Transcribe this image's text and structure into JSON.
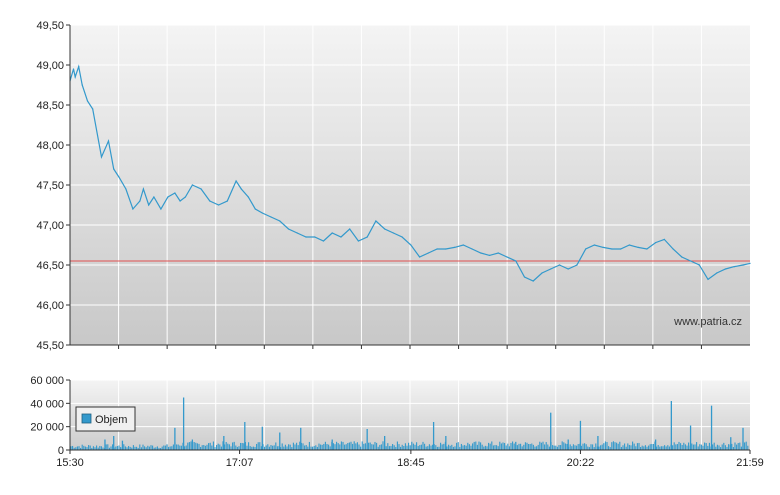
{
  "chart_data": [
    {
      "type": "line",
      "title": "",
      "xlabel": "",
      "ylabel": "",
      "ylim": [
        45.5,
        49.5
      ],
      "y_ticks": [
        "45,50",
        "46,00",
        "46,50",
        "47,00",
        "47,50",
        "48,00",
        "48,50",
        "49,00",
        "49,50"
      ],
      "reference_line": {
        "value": 46.55,
        "color": "#e05050"
      },
      "watermark": "www.patria.cz",
      "line_color": "#3399cc",
      "grid": true,
      "x_time_range": [
        "15:30",
        "21:59"
      ],
      "series": [
        {
          "x": [
            "15:30",
            "15:32",
            "15:33",
            "15:35",
            "15:37",
            "15:40",
            "15:43",
            "15:48",
            "15:52",
            "15:55",
            "15:58",
            "16:02",
            "16:06",
            "16:10",
            "16:12",
            "16:15",
            "16:18",
            "16:22",
            "16:26",
            "16:30",
            "16:33",
            "16:36",
            "16:40",
            "16:45",
            "16:50",
            "16:55",
            "17:00",
            "17:05",
            "17:08",
            "17:12",
            "17:16",
            "17:20",
            "17:25",
            "17:30",
            "17:35",
            "17:40",
            "17:45",
            "17:50",
            "17:55",
            "18:00",
            "18:05",
            "18:10",
            "18:15",
            "18:20",
            "18:25",
            "18:30",
            "18:35",
            "18:40",
            "18:45",
            "18:50",
            "18:55",
            "19:00",
            "19:05",
            "19:10",
            "19:15",
            "19:20",
            "19:25",
            "19:30",
            "19:35",
            "19:40",
            "19:45",
            "19:50",
            "19:55",
            "20:00",
            "20:05",
            "20:10",
            "20:15",
            "20:20",
            "20:25",
            "20:30",
            "20:35",
            "20:40",
            "20:45",
            "20:50",
            "20:55",
            "21:00",
            "21:05",
            "21:10",
            "21:15",
            "21:20",
            "21:25",
            "21:30",
            "21:35",
            "21:40",
            "21:45",
            "21:50",
            "21:55",
            "21:59"
          ],
          "values": [
            48.8,
            48.95,
            48.85,
            48.98,
            48.75,
            48.55,
            48.45,
            47.85,
            48.05,
            47.7,
            47.6,
            47.45,
            47.2,
            47.3,
            47.45,
            47.25,
            47.35,
            47.2,
            47.35,
            47.4,
            47.3,
            47.35,
            47.5,
            47.45,
            47.3,
            47.25,
            47.3,
            47.55,
            47.45,
            47.35,
            47.2,
            47.15,
            47.1,
            47.05,
            46.95,
            46.9,
            46.85,
            46.85,
            46.8,
            46.9,
            46.85,
            46.95,
            46.8,
            46.85,
            47.05,
            46.95,
            46.9,
            46.85,
            46.75,
            46.6,
            46.65,
            46.7,
            46.7,
            46.72,
            46.75,
            46.7,
            46.65,
            46.62,
            46.65,
            46.6,
            46.55,
            46.35,
            46.3,
            46.4,
            46.45,
            46.5,
            46.45,
            46.5,
            46.7,
            46.75,
            46.72,
            46.7,
            46.7,
            46.75,
            46.72,
            46.7,
            46.78,
            46.82,
            46.7,
            46.6,
            46.55,
            46.5,
            46.32,
            46.4,
            46.45,
            46.48,
            46.5,
            46.52
          ]
        }
      ]
    },
    {
      "type": "bar",
      "title": "",
      "ylim": [
        0,
        60000
      ],
      "y_ticks": [
        "0",
        "20 000",
        "40 000",
        "60 000"
      ],
      "x_ticks": [
        "15:30",
        "17:07",
        "18:45",
        "20:22",
        "21:59"
      ],
      "legend": "Objem",
      "legend_position": "top-left",
      "bar_color": "#3399cc",
      "grid": true,
      "spikes": [
        {
          "x": "15:50",
          "value": 9000
        },
        {
          "x": "15:55",
          "value": 12000
        },
        {
          "x": "16:00",
          "value": 8000
        },
        {
          "x": "16:30",
          "value": 19000
        },
        {
          "x": "16:35",
          "value": 45000
        },
        {
          "x": "16:40",
          "value": 9000
        },
        {
          "x": "16:58",
          "value": 12000
        },
        {
          "x": "17:10",
          "value": 24000
        },
        {
          "x": "17:20",
          "value": 20000
        },
        {
          "x": "17:30",
          "value": 15000
        },
        {
          "x": "17:42",
          "value": 19000
        },
        {
          "x": "18:00",
          "value": 9000
        },
        {
          "x": "18:20",
          "value": 18000
        },
        {
          "x": "18:30",
          "value": 12000
        },
        {
          "x": "18:58",
          "value": 24000
        },
        {
          "x": "19:05",
          "value": 12000
        },
        {
          "x": "19:45",
          "value": 7000
        },
        {
          "x": "20:05",
          "value": 32000
        },
        {
          "x": "20:15",
          "value": 9000
        },
        {
          "x": "20:22",
          "value": 25000
        },
        {
          "x": "20:32",
          "value": 12000
        },
        {
          "x": "21:05",
          "value": 9000
        },
        {
          "x": "21:14",
          "value": 42000
        },
        {
          "x": "21:25",
          "value": 21000
        },
        {
          "x": "21:37",
          "value": 38000
        },
        {
          "x": "21:48",
          "value": 11000
        },
        {
          "x": "21:55",
          "value": 19000
        }
      ]
    }
  ]
}
